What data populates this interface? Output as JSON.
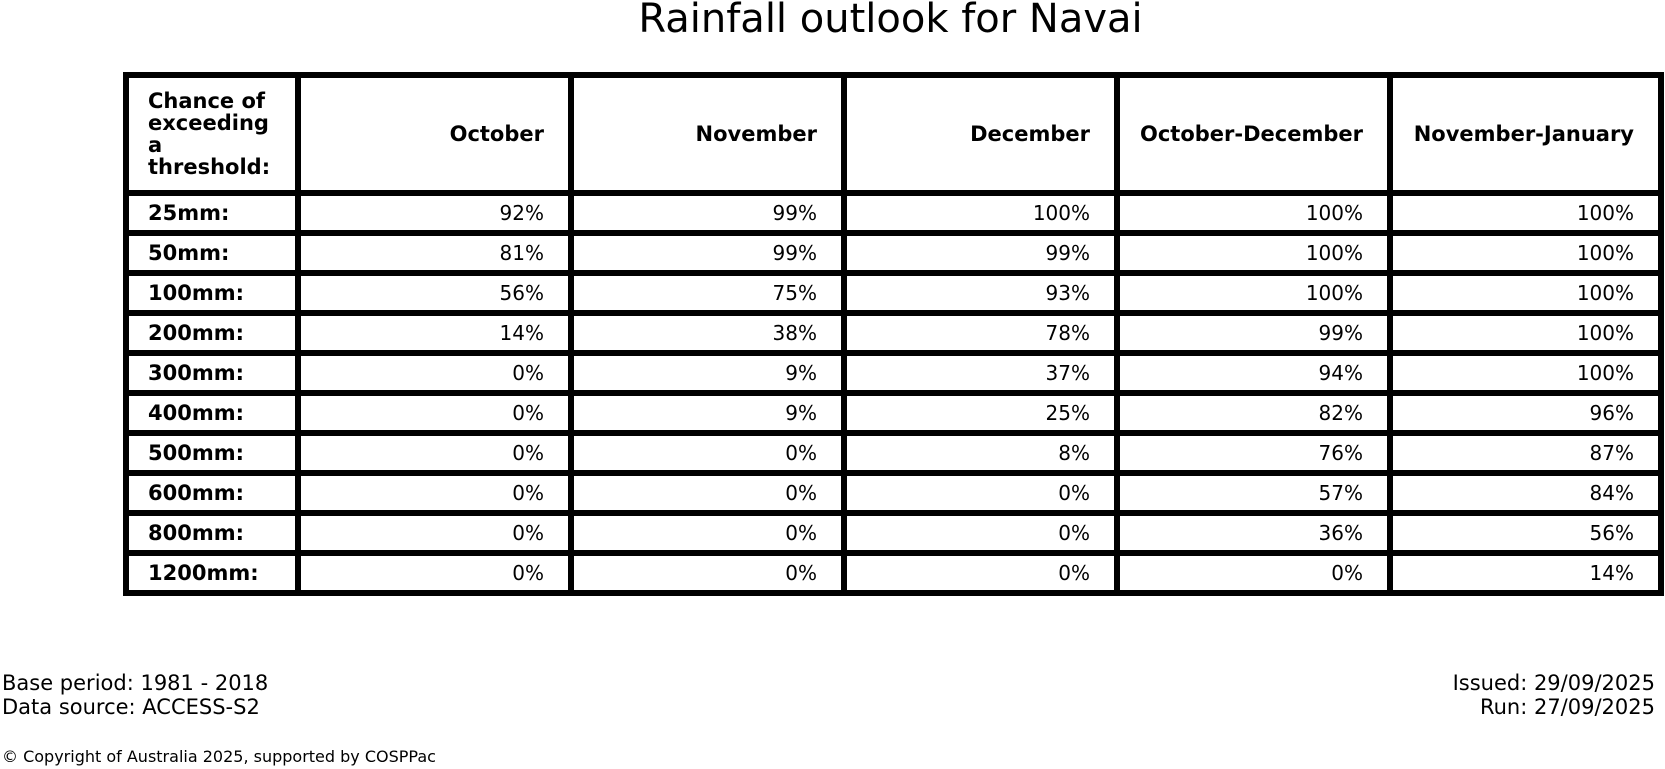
{
  "title": "Rainfall outlook for Navai",
  "chart_data": {
    "type": "table",
    "title": "Rainfall outlook for Navai",
    "header_label": "Chance of\nexceeding\na threshold:",
    "columns": [
      "October",
      "November",
      "December",
      "October-December",
      "November-January"
    ],
    "rows": [
      {
        "threshold": "25mm:",
        "values": [
          "92%",
          "99%",
          "100%",
          "100%",
          "100%"
        ]
      },
      {
        "threshold": "50mm:",
        "values": [
          "81%",
          "99%",
          "99%",
          "100%",
          "100%"
        ]
      },
      {
        "threshold": "100mm:",
        "values": [
          "56%",
          "75%",
          "93%",
          "100%",
          "100%"
        ]
      },
      {
        "threshold": "200mm:",
        "values": [
          "14%",
          "38%",
          "78%",
          "99%",
          "100%"
        ]
      },
      {
        "threshold": "300mm:",
        "values": [
          "0%",
          "9%",
          "37%",
          "94%",
          "100%"
        ]
      },
      {
        "threshold": "400mm:",
        "values": [
          "0%",
          "9%",
          "25%",
          "82%",
          "96%"
        ]
      },
      {
        "threshold": "500mm:",
        "values": [
          "0%",
          "0%",
          "8%",
          "76%",
          "87%"
        ]
      },
      {
        "threshold": "600mm:",
        "values": [
          "0%",
          "0%",
          "0%",
          "57%",
          "84%"
        ]
      },
      {
        "threshold": "800mm:",
        "values": [
          "0%",
          "0%",
          "0%",
          "36%",
          "56%"
        ]
      },
      {
        "threshold": "1200mm:",
        "values": [
          "0%",
          "0%",
          "0%",
          "0%",
          "14%"
        ]
      }
    ]
  },
  "footer": {
    "base_period": "Base period: 1981 - 2018",
    "data_source": "Data source: ACCESS-S2",
    "issued": "Issued: 29/09/2025",
    "run": "Run: 27/09/2025",
    "copyright": "© Copyright of Australia 2025, supported by COSPPac"
  },
  "colors": {
    "text": "#000000",
    "border": "#000000",
    "background": "#ffffff"
  }
}
